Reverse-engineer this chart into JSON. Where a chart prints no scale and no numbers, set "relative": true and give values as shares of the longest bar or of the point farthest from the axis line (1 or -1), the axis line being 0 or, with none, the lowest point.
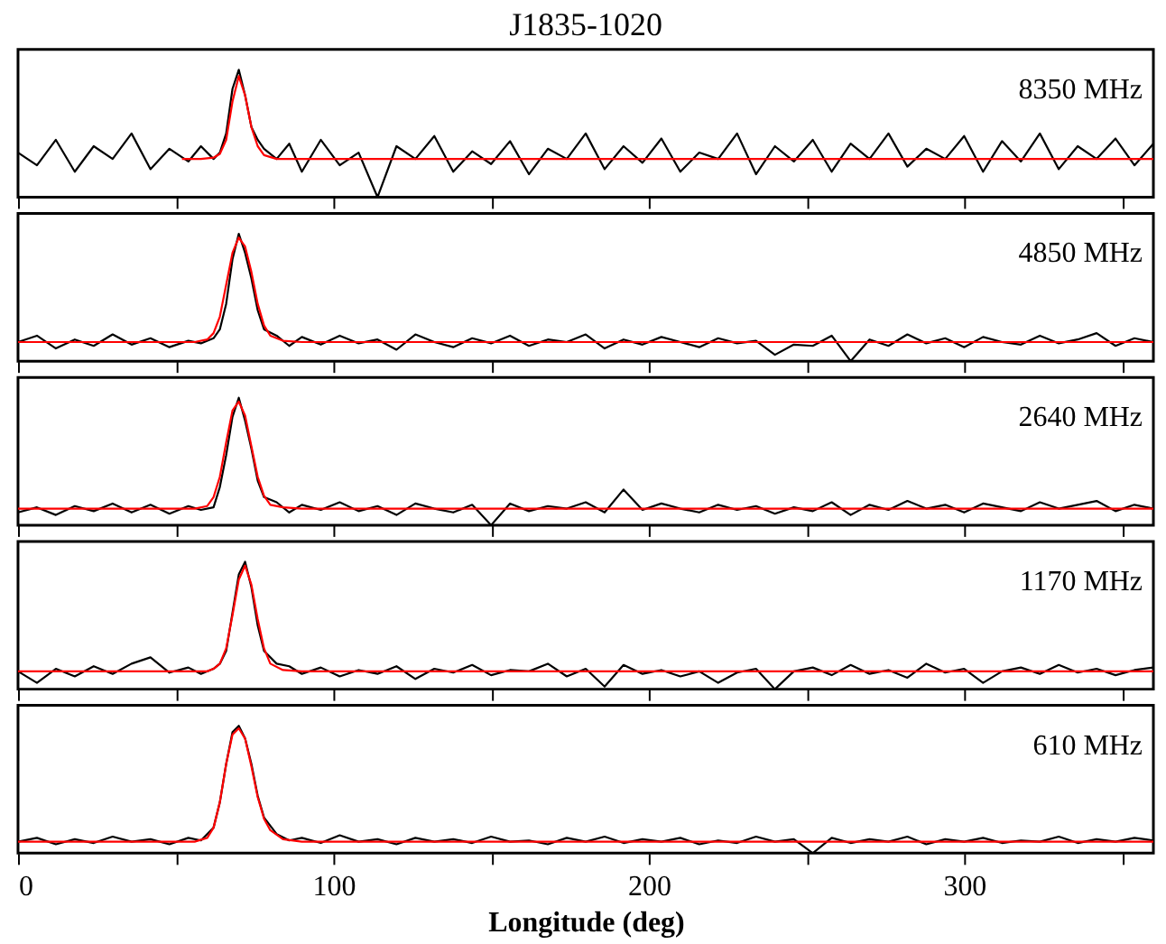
{
  "chart_data": [
    {
      "type": "line",
      "title": "J1835-1020",
      "relative": true,
      "annotations": [
        "8350 MHz"
      ],
      "xlim": [
        0,
        360
      ],
      "xticks": [
        0,
        {
          "value": 50,
          "label": null
        },
        100,
        {
          "value": 150,
          "label": null
        },
        200,
        {
          "value": 250,
          "label": null
        },
        300,
        {
          "value": 350,
          "label": null
        }
      ],
      "tick_labels": false,
      "grid": false,
      "line_style": "solid",
      "x": [
        0,
        6,
        12,
        18,
        24,
        30,
        36,
        42,
        48,
        54,
        58,
        62,
        64,
        66,
        68,
        70,
        72,
        74,
        76,
        78,
        82,
        86,
        90,
        96,
        102,
        108,
        114,
        120,
        126,
        132,
        138,
        144,
        150,
        156,
        162,
        168,
        174,
        180,
        186,
        192,
        198,
        204,
        210,
        216,
        222,
        228,
        234,
        240,
        246,
        252,
        258,
        264,
        270,
        276,
        282,
        288,
        294,
        300,
        306,
        312,
        318,
        324,
        330,
        336,
        342,
        348,
        354,
        360
      ],
      "series": [
        {
          "color": "#000000",
          "values": [
            0.35,
            0.25,
            0.45,
            0.2,
            0.4,
            0.3,
            0.5,
            0.22,
            0.38,
            0.28,
            0.4,
            0.3,
            0.35,
            0.5,
            0.85,
            1.0,
            0.8,
            0.55,
            0.45,
            0.38,
            0.3,
            0.42,
            0.2,
            0.45,
            0.25,
            0.35,
            0.0,
            0.4,
            0.3,
            0.48,
            0.2,
            0.36,
            0.26,
            0.44,
            0.18,
            0.38,
            0.3,
            0.5,
            0.22,
            0.4,
            0.27,
            0.46,
            0.2,
            0.35,
            0.3,
            0.5,
            0.18,
            0.4,
            0.28,
            0.45,
            0.2,
            0.42,
            0.3,
            0.5,
            0.24,
            0.38,
            0.3,
            0.48,
            0.2,
            0.44,
            0.28,
            0.5,
            0.22,
            0.4,
            0.3,
            0.46,
            0.25,
            0.42
          ]
        },
        {
          "color": "#ff0000",
          "x": [
            52,
            58,
            62,
            64,
            66,
            68,
            70,
            72,
            74,
            76,
            78,
            82,
            86,
            90,
            120,
            180,
            240,
            300,
            360
          ],
          "values": [
            0.3,
            0.3,
            0.31,
            0.34,
            0.45,
            0.75,
            0.95,
            0.8,
            0.55,
            0.4,
            0.33,
            0.3,
            0.3,
            0.3,
            0.3,
            0.3,
            0.3,
            0.3,
            0.3
          ]
        }
      ]
    },
    {
      "type": "line",
      "relative": true,
      "annotations": [
        "4850 MHz"
      ],
      "xlim": [
        0,
        360
      ],
      "xticks": [
        0,
        {
          "value": 50,
          "label": null
        },
        100,
        {
          "value": 150,
          "label": null
        },
        200,
        {
          "value": 250,
          "label": null
        },
        300,
        {
          "value": 350,
          "label": null
        }
      ],
      "tick_labels": false,
      "grid": false,
      "line_style": "solid",
      "x": [
        0,
        6,
        12,
        18,
        24,
        30,
        36,
        42,
        48,
        54,
        58,
        62,
        64,
        66,
        68,
        70,
        72,
        74,
        76,
        78,
        82,
        86,
        90,
        96,
        102,
        108,
        114,
        120,
        126,
        132,
        138,
        144,
        150,
        156,
        162,
        168,
        174,
        180,
        186,
        192,
        198,
        204,
        210,
        216,
        222,
        228,
        234,
        240,
        246,
        252,
        258,
        264,
        270,
        276,
        282,
        288,
        294,
        300,
        306,
        312,
        318,
        324,
        330,
        336,
        342,
        348,
        354,
        360
      ],
      "series": [
        {
          "color": "#000000",
          "values": [
            0.15,
            0.2,
            0.1,
            0.17,
            0.12,
            0.21,
            0.13,
            0.18,
            0.11,
            0.16,
            0.14,
            0.18,
            0.25,
            0.45,
            0.8,
            1.0,
            0.85,
            0.65,
            0.4,
            0.25,
            0.2,
            0.12,
            0.19,
            0.13,
            0.2,
            0.14,
            0.17,
            0.09,
            0.21,
            0.15,
            0.11,
            0.18,
            0.14,
            0.2,
            0.12,
            0.17,
            0.15,
            0.21,
            0.1,
            0.17,
            0.13,
            0.19,
            0.15,
            0.11,
            0.18,
            0.14,
            0.16,
            0.05,
            0.13,
            0.12,
            0.2,
            0.0,
            0.17,
            0.12,
            0.21,
            0.14,
            0.18,
            0.11,
            0.19,
            0.15,
            0.13,
            0.2,
            0.14,
            0.17,
            0.22,
            0.12,
            0.18,
            0.15
          ]
        },
        {
          "color": "#ff0000",
          "x": [
            0,
            30,
            56,
            60,
            62,
            64,
            66,
            68,
            70,
            72,
            74,
            76,
            78,
            80,
            84,
            90,
            120,
            180,
            240,
            300,
            360
          ],
          "values": [
            0.15,
            0.15,
            0.15,
            0.17,
            0.22,
            0.35,
            0.6,
            0.85,
            0.97,
            0.9,
            0.7,
            0.45,
            0.28,
            0.2,
            0.16,
            0.15,
            0.15,
            0.15,
            0.15,
            0.15,
            0.15
          ]
        }
      ]
    },
    {
      "type": "line",
      "relative": true,
      "annotations": [
        "2640 MHz"
      ],
      "xlim": [
        0,
        360
      ],
      "xticks": [
        0,
        {
          "value": 50,
          "label": null
        },
        100,
        {
          "value": 150,
          "label": null
        },
        200,
        {
          "value": 250,
          "label": null
        },
        300,
        {
          "value": 350,
          "label": null
        }
      ],
      "tick_labels": false,
      "grid": false,
      "line_style": "solid",
      "x": [
        0,
        6,
        12,
        18,
        24,
        30,
        36,
        42,
        48,
        54,
        58,
        62,
        64,
        66,
        68,
        70,
        72,
        74,
        76,
        78,
        82,
        86,
        90,
        96,
        102,
        108,
        114,
        120,
        126,
        132,
        138,
        144,
        150,
        156,
        162,
        168,
        174,
        180,
        186,
        192,
        198,
        204,
        210,
        216,
        222,
        228,
        234,
        240,
        246,
        252,
        258,
        264,
        270,
        276,
        282,
        288,
        294,
        300,
        306,
        312,
        318,
        324,
        330,
        336,
        342,
        348,
        354,
        360
      ],
      "series": [
        {
          "color": "#000000",
          "values": [
            0.1,
            0.14,
            0.08,
            0.15,
            0.11,
            0.17,
            0.1,
            0.16,
            0.09,
            0.15,
            0.12,
            0.14,
            0.3,
            0.55,
            0.85,
            1.0,
            0.82,
            0.6,
            0.35,
            0.22,
            0.18,
            0.1,
            0.16,
            0.12,
            0.18,
            0.11,
            0.15,
            0.08,
            0.17,
            0.13,
            0.1,
            0.16,
            0.0,
            0.17,
            0.11,
            0.15,
            0.13,
            0.18,
            0.1,
            0.28,
            0.12,
            0.17,
            0.13,
            0.1,
            0.16,
            0.12,
            0.15,
            0.09,
            0.14,
            0.11,
            0.18,
            0.08,
            0.16,
            0.12,
            0.19,
            0.13,
            0.16,
            0.1,
            0.17,
            0.14,
            0.11,
            0.18,
            0.13,
            0.16,
            0.19,
            0.11,
            0.16,
            0.13
          ]
        },
        {
          "color": "#ff0000",
          "x": [
            0,
            30,
            56,
            60,
            62,
            64,
            66,
            68,
            70,
            72,
            74,
            76,
            78,
            80,
            84,
            90,
            120,
            180,
            240,
            300,
            360
          ],
          "values": [
            0.13,
            0.13,
            0.13,
            0.15,
            0.22,
            0.38,
            0.65,
            0.9,
            0.97,
            0.86,
            0.62,
            0.38,
            0.23,
            0.16,
            0.14,
            0.13,
            0.13,
            0.13,
            0.13,
            0.13,
            0.13
          ]
        }
      ]
    },
    {
      "type": "line",
      "relative": true,
      "annotations": [
        "1170 MHz"
      ],
      "xlim": [
        0,
        360
      ],
      "xticks": [
        0,
        {
          "value": 50,
          "label": null
        },
        100,
        {
          "value": 150,
          "label": null
        },
        200,
        {
          "value": 250,
          "label": null
        },
        300,
        {
          "value": 350,
          "label": null
        }
      ],
      "tick_labels": false,
      "grid": false,
      "line_style": "solid",
      "x": [
        0,
        6,
        12,
        18,
        24,
        30,
        36,
        42,
        48,
        54,
        58,
        62,
        64,
        66,
        68,
        70,
        72,
        74,
        76,
        78,
        82,
        86,
        90,
        96,
        102,
        108,
        114,
        120,
        126,
        132,
        138,
        144,
        150,
        156,
        162,
        168,
        174,
        180,
        186,
        192,
        198,
        204,
        210,
        216,
        222,
        228,
        234,
        240,
        246,
        252,
        258,
        264,
        270,
        276,
        282,
        288,
        294,
        300,
        306,
        312,
        318,
        324,
        330,
        336,
        342,
        348,
        354,
        360
      ],
      "series": [
        {
          "color": "#000000",
          "values": [
            0.14,
            0.05,
            0.16,
            0.1,
            0.18,
            0.12,
            0.2,
            0.25,
            0.13,
            0.17,
            0.12,
            0.16,
            0.2,
            0.3,
            0.6,
            0.9,
            1.0,
            0.8,
            0.5,
            0.3,
            0.2,
            0.18,
            0.12,
            0.17,
            0.1,
            0.15,
            0.12,
            0.18,
            0.08,
            0.16,
            0.13,
            0.19,
            0.11,
            0.15,
            0.14,
            0.2,
            0.1,
            0.16,
            0.02,
            0.19,
            0.12,
            0.15,
            0.1,
            0.14,
            0.05,
            0.13,
            0.16,
            0.0,
            0.14,
            0.17,
            0.11,
            0.19,
            0.12,
            0.15,
            0.09,
            0.2,
            0.13,
            0.16,
            0.05,
            0.14,
            0.17,
            0.12,
            0.19,
            0.13,
            0.16,
            0.11,
            0.15,
            0.17
          ]
        },
        {
          "color": "#ff0000",
          "x": [
            0,
            30,
            56,
            60,
            62,
            64,
            66,
            68,
            70,
            72,
            74,
            76,
            78,
            80,
            84,
            90,
            120,
            180,
            240,
            300,
            360
          ],
          "values": [
            0.14,
            0.14,
            0.14,
            0.14,
            0.16,
            0.2,
            0.32,
            0.58,
            0.86,
            0.97,
            0.82,
            0.55,
            0.32,
            0.2,
            0.15,
            0.14,
            0.14,
            0.14,
            0.14,
            0.14,
            0.14
          ]
        }
      ]
    },
    {
      "type": "line",
      "relative": true,
      "annotations": [
        "610 MHz"
      ],
      "xlabel": "Longitude (deg)",
      "xlim": [
        0,
        360
      ],
      "xticks": [
        0,
        {
          "value": 50,
          "label": null
        },
        100,
        {
          "value": 150,
          "label": null
        },
        200,
        {
          "value": 250,
          "label": null
        },
        300,
        {
          "value": 350,
          "label": null
        }
      ],
      "tick_labels": "x",
      "grid": false,
      "line_style": "solid",
      "x": [
        0,
        6,
        12,
        18,
        24,
        30,
        36,
        42,
        48,
        54,
        58,
        62,
        64,
        66,
        68,
        70,
        72,
        74,
        76,
        78,
        82,
        86,
        90,
        96,
        102,
        108,
        114,
        120,
        126,
        132,
        138,
        144,
        150,
        156,
        162,
        168,
        174,
        180,
        186,
        192,
        198,
        204,
        210,
        216,
        222,
        228,
        234,
        240,
        246,
        252,
        258,
        264,
        270,
        276,
        282,
        288,
        294,
        300,
        306,
        312,
        318,
        324,
        330,
        336,
        342,
        348,
        354,
        360
      ],
      "series": [
        {
          "color": "#000000",
          "values": [
            0.09,
            0.12,
            0.07,
            0.11,
            0.08,
            0.13,
            0.09,
            0.11,
            0.07,
            0.12,
            0.1,
            0.2,
            0.4,
            0.7,
            0.95,
            1.0,
            0.9,
            0.7,
            0.45,
            0.28,
            0.15,
            0.1,
            0.12,
            0.08,
            0.14,
            0.09,
            0.11,
            0.07,
            0.12,
            0.09,
            0.11,
            0.08,
            0.13,
            0.09,
            0.1,
            0.07,
            0.12,
            0.09,
            0.13,
            0.08,
            0.11,
            0.09,
            0.12,
            0.07,
            0.1,
            0.08,
            0.13,
            0.09,
            0.11,
            0.0,
            0.12,
            0.08,
            0.11,
            0.09,
            0.13,
            0.07,
            0.11,
            0.09,
            0.12,
            0.08,
            0.1,
            0.09,
            0.13,
            0.08,
            0.11,
            0.09,
            0.12,
            0.1
          ]
        },
        {
          "color": "#ff0000",
          "x": [
            0,
            30,
            56,
            60,
            62,
            64,
            66,
            68,
            70,
            72,
            74,
            76,
            78,
            80,
            84,
            90,
            120,
            180,
            240,
            300,
            360
          ],
          "values": [
            0.09,
            0.09,
            0.09,
            0.12,
            0.2,
            0.4,
            0.7,
            0.93,
            0.98,
            0.9,
            0.68,
            0.44,
            0.27,
            0.18,
            0.11,
            0.09,
            0.09,
            0.09,
            0.09,
            0.09,
            0.09
          ]
        }
      ]
    }
  ]
}
